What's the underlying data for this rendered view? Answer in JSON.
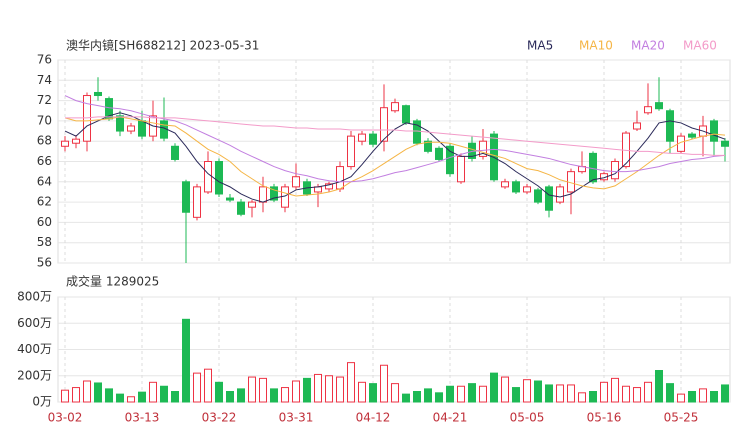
{
  "chart_data": [
    {
      "type": "candlestick",
      "title": "澳华内镜[SH688212] 2023-05-31",
      "categories": [
        "03-02",
        null,
        null,
        null,
        null,
        null,
        null,
        "03-13",
        null,
        null,
        null,
        null,
        null,
        null,
        "03-22",
        null,
        null,
        null,
        null,
        null,
        null,
        "03-31",
        null,
        null,
        null,
        null,
        null,
        null,
        "04-12",
        null,
        null,
        null,
        null,
        null,
        null,
        "04-21",
        null,
        null,
        null,
        null,
        null,
        null,
        "05-05",
        null,
        null,
        null,
        null,
        null,
        null,
        "05-16",
        null,
        null,
        null,
        null,
        null,
        null,
        "05-25",
        null,
        null,
        null,
        null
      ],
      "open": [
        67.5,
        67.8,
        68,
        72.8,
        72.2,
        70.5,
        69,
        70,
        68.5,
        70,
        67.5,
        64,
        60.5,
        63,
        66,
        62.4,
        62,
        61.5,
        62,
        63.5,
        61.5,
        63.5,
        64,
        63,
        63.3,
        63.3,
        65.5,
        68,
        68.7,
        68,
        71,
        71.5,
        70,
        68,
        67.3,
        67.5,
        64,
        67.8,
        66.5,
        68.7,
        63.5,
        64,
        63,
        63.2,
        63.5,
        62,
        63,
        65,
        66.8,
        64.2,
        64.3,
        65.5,
        69.2,
        70.8,
        71.8,
        71,
        67,
        68.7,
        68.5,
        70,
        68
      ],
      "high": [
        68.5,
        68.6,
        72.8,
        74.3,
        72.4,
        71,
        69.8,
        71,
        72,
        72.3,
        67.8,
        64.2,
        63.8,
        67,
        66.3,
        62.8,
        62.3,
        62.2,
        64.5,
        63.8,
        63.8,
        65.8,
        64.3,
        63.8,
        64,
        66,
        69,
        69,
        69,
        73.6,
        72.2,
        71.6,
        70.2,
        68.3,
        67.5,
        67.8,
        66.8,
        68.5,
        69.2,
        69,
        64.3,
        64.2,
        63.8,
        63.4,
        63.7,
        63.8,
        65.3,
        67,
        67,
        65,
        66.3,
        69,
        71,
        73.7,
        74.3,
        71.2,
        68.8,
        68.9,
        70.5,
        70.2,
        68.3
      ],
      "low": [
        67,
        67.3,
        67,
        72,
        70,
        68.5,
        68.7,
        68.2,
        68,
        68,
        66,
        56,
        60.2,
        62.8,
        62.5,
        62,
        60.6,
        60.5,
        61,
        62,
        61,
        63.2,
        62.6,
        61.5,
        63,
        63,
        65.2,
        67.6,
        67.4,
        67,
        70.8,
        69.6,
        67.6,
        66.8,
        66,
        64.5,
        63.8,
        66,
        66.2,
        64,
        63.3,
        62.8,
        62.8,
        61.8,
        60.5,
        61.8,
        60.8,
        64.8,
        63.8,
        64,
        64,
        65.3,
        69,
        70.6,
        71,
        66.8,
        66.8,
        68.2,
        66.5,
        66.5,
        66
      ],
      "close": [
        68,
        68.2,
        72.5,
        72.5,
        70.2,
        69,
        69.5,
        68.5,
        70.5,
        68.3,
        66.2,
        61,
        63.5,
        66,
        62.8,
        62.2,
        60.8,
        62,
        63.5,
        62.2,
        63.5,
        64.5,
        62.8,
        63.5,
        63.8,
        65.5,
        68.5,
        68.7,
        67.7,
        71.3,
        71.8,
        69.8,
        67.8,
        67,
        66.2,
        64.8,
        66.5,
        66.3,
        68,
        64.2,
        64,
        63,
        63.5,
        62,
        61.2,
        63.5,
        65,
        65.5,
        64,
        64.8,
        66,
        68.8,
        69.8,
        71.4,
        71.2,
        68,
        68.5,
        68.4,
        69.5,
        68,
        67.5
      ],
      "up_color": "#ee3344",
      "down_color": "#1db954",
      "series": [
        {
          "name": "MA5",
          "color": "#2b2a5a",
          "values": [
            69,
            68.5,
            69.5,
            70,
            70.5,
            70.8,
            70.5,
            70,
            69.5,
            69.3,
            68.8,
            67.5,
            66,
            64.8,
            64,
            63.5,
            62.8,
            62.3,
            62,
            62.4,
            62.6,
            63.2,
            63.4,
            63.5,
            63.7,
            64,
            64.5,
            65.7,
            67,
            68.2,
            69.2,
            69.8,
            69.6,
            69,
            68,
            67,
            66.5,
            66.5,
            66.8,
            66.4,
            65.8,
            65,
            64.3,
            63.6,
            62.7,
            62.5,
            62.8,
            63.5,
            64.2,
            64.4,
            64.8,
            65.8,
            67,
            68.3,
            69.8,
            70,
            69.8,
            69.3,
            69,
            68.6,
            68.2
          ]
        },
        {
          "name": "MA10",
          "color": "#f5b545",
          "values": [
            70.3,
            70,
            70,
            70.1,
            70.2,
            70.4,
            70.2,
            70,
            69.8,
            69.6,
            69.5,
            68.8,
            68,
            67.2,
            66.7,
            66,
            65,
            64.3,
            63.6,
            63.2,
            62.9,
            62.6,
            62.7,
            62.8,
            63,
            63.3,
            64,
            64.5,
            65.1,
            65.8,
            66.5,
            67.2,
            67.7,
            67.9,
            67.9,
            67.8,
            67.5,
            67.2,
            66.9,
            66.6,
            66.3,
            65.8,
            65.3,
            65.1,
            64.7,
            64.2,
            63.9,
            63.6,
            63.4,
            63.3,
            63.6,
            64.3,
            65,
            65.8,
            66.6,
            67.3,
            67.9,
            68.2,
            68.5,
            68.7,
            68.6
          ]
        },
        {
          "name": "MA20",
          "color": "#c27fe0",
          "values": [
            72.5,
            72,
            71.7,
            71.5,
            71.3,
            71.2,
            71,
            70.7,
            70.4,
            70.2,
            70,
            69.6,
            69.1,
            68.6,
            68.1,
            67.6,
            67,
            66.5,
            66,
            65.5,
            65.1,
            64.8,
            64.6,
            64.3,
            64.1,
            64,
            64,
            64.1,
            64.3,
            64.6,
            64.9,
            65.1,
            65.4,
            65.7,
            66,
            66.4,
            66.7,
            67,
            67.1,
            67.2,
            67.1,
            66.9,
            66.7,
            66.5,
            66.3,
            66,
            65.7,
            65.5,
            65.3,
            65.1,
            65,
            65,
            65.1,
            65.3,
            65.5,
            65.8,
            66,
            66.2,
            66.3,
            66.5,
            66.6
          ]
        },
        {
          "name": "MA60",
          "color": "#f39bc9",
          "values": [
            70.3,
            70.3,
            70.3,
            70.4,
            70.4,
            70.4,
            70.4,
            70.4,
            70.3,
            70.3,
            70.3,
            70.2,
            70.1,
            70,
            69.9,
            69.8,
            69.7,
            69.6,
            69.5,
            69.5,
            69.4,
            69.3,
            69.3,
            69.2,
            69.2,
            69.2,
            69.1,
            69.1,
            69.1,
            69.1,
            69.1,
            69,
            69,
            68.9,
            68.8,
            68.7,
            68.6,
            68.5,
            68.4,
            68.3,
            68.2,
            68.1,
            68,
            67.9,
            67.8,
            67.7,
            67.6,
            67.5,
            67.4,
            67.3,
            67.2,
            67.1,
            67,
            67,
            66.9,
            66.8,
            66.8,
            66.7,
            66.7,
            66.6,
            66.6
          ]
        }
      ],
      "ylim": [
        56,
        76
      ],
      "yticks": [
        56,
        58,
        60,
        62,
        64,
        66,
        68,
        70,
        72,
        74,
        76
      ],
      "grid": true
    },
    {
      "type": "bar",
      "title": "成交量 1289025",
      "values": [
        90,
        110,
        160,
        145,
        100,
        60,
        40,
        75,
        150,
        120,
        80,
        630,
        220,
        250,
        150,
        80,
        100,
        190,
        180,
        100,
        110,
        160,
        180,
        210,
        200,
        190,
        300,
        150,
        140,
        280,
        140,
        60,
        80,
        100,
        70,
        120,
        120,
        140,
        120,
        220,
        190,
        110,
        170,
        160,
        130,
        130,
        130,
        70,
        80,
        150,
        180,
        120,
        110,
        150,
        240,
        140,
        60,
        80,
        100,
        80,
        130
      ],
      "ylim": [
        0,
        800
      ],
      "yticks": [
        {
          "value": 0,
          "label": "0万"
        },
        {
          "value": 200,
          "label": "200万"
        },
        {
          "value": 400,
          "label": "400万"
        },
        {
          "value": 600,
          "label": "600万"
        },
        {
          "value": 800,
          "label": "800万"
        }
      ],
      "grid": true
    }
  ]
}
